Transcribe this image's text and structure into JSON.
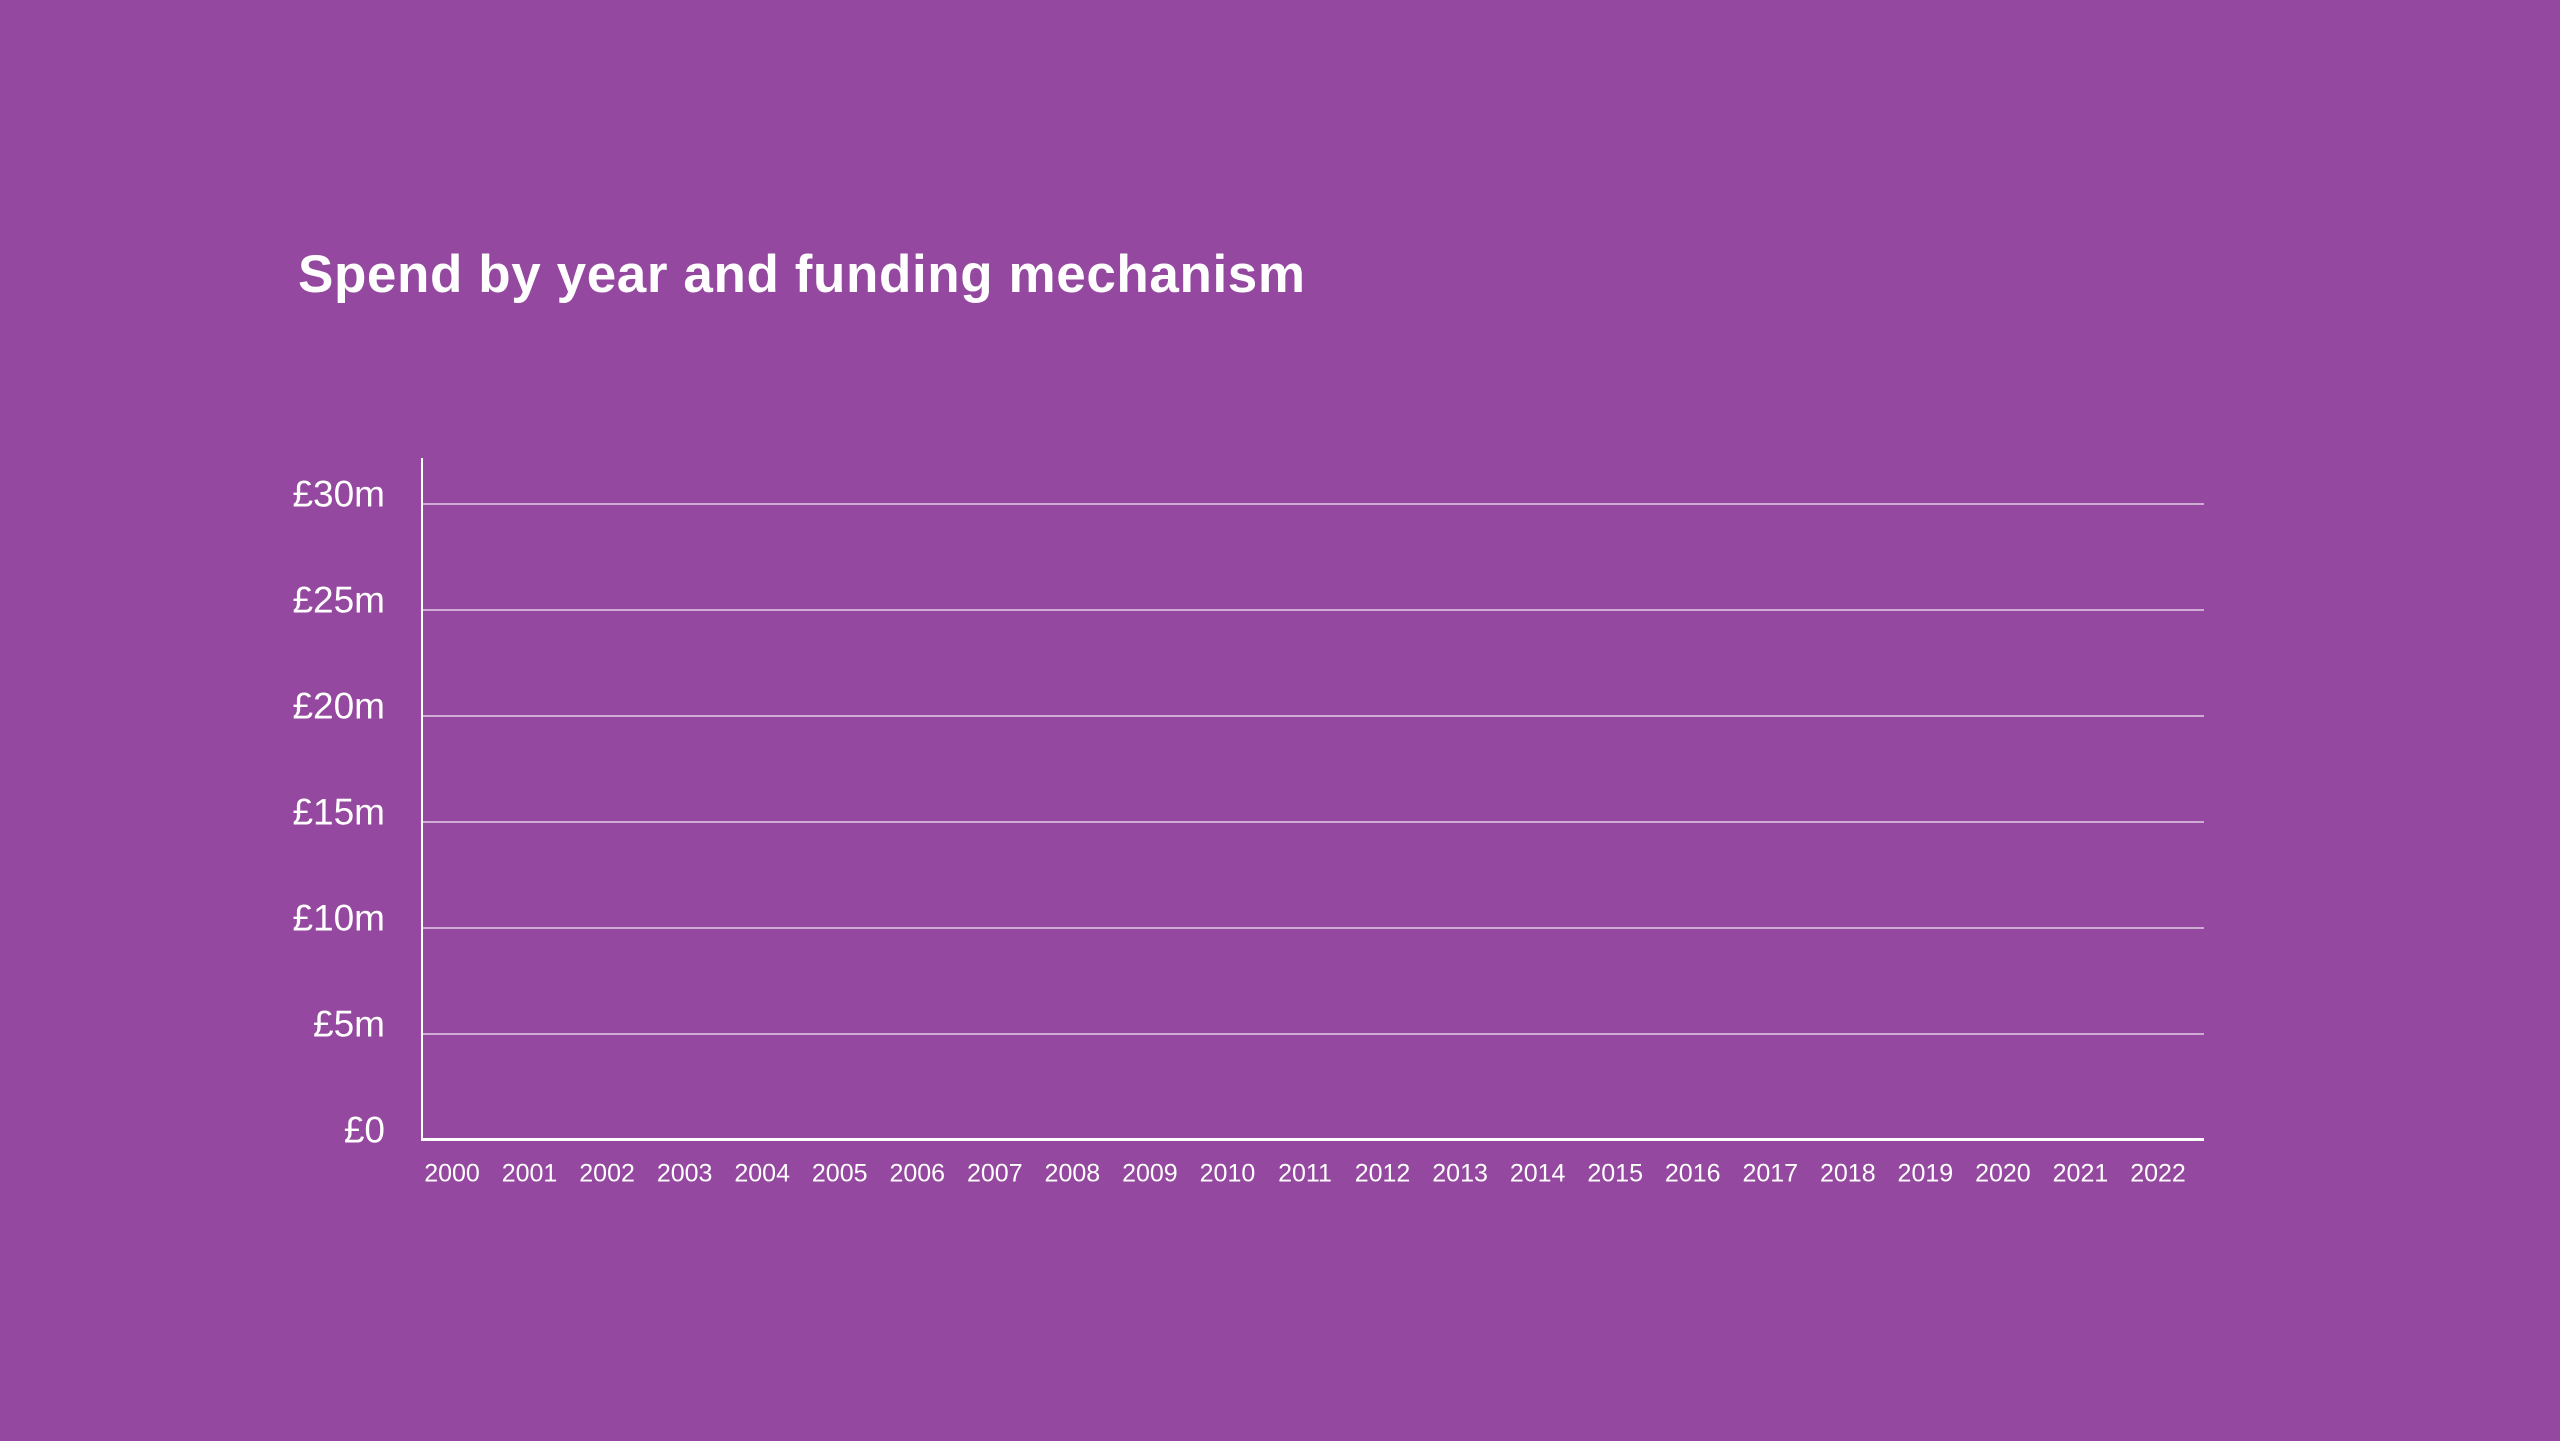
{
  "colors": {
    "background": "#95489F",
    "text": "#FFFFFF",
    "axis_line": "#FFFFFF",
    "gridline": "rgba(255,255,255,0.55)"
  },
  "header": {
    "title": "Spend by year and funding mechanism"
  },
  "chart_data": {
    "type": "bar",
    "title": "Spend by year and funding mechanism",
    "categories": [
      "2000",
      "2001",
      "2002",
      "2003",
      "2004",
      "2005",
      "2006",
      "2007",
      "2008",
      "2009",
      "2010",
      "2011",
      "2012",
      "2013",
      "2014",
      "2015",
      "2016",
      "2017",
      "2018",
      "2019",
      "2020",
      "2021",
      "2022"
    ],
    "series": [],
    "y_ticks": [
      {
        "label": "£30m",
        "value": 30
      },
      {
        "label": "£25m",
        "value": 25
      },
      {
        "label": "£20m",
        "value": 20
      },
      {
        "label": "£15m",
        "value": 15
      },
      {
        "label": "£10m",
        "value": 10
      },
      {
        "label": "£5m",
        "value": 5
      },
      {
        "label": "£0",
        "value": 0
      }
    ],
    "xlabel": "",
    "ylabel": "",
    "ylim": [
      0,
      32
    ],
    "grid": true,
    "legend": false,
    "plot_area_empty": true
  }
}
